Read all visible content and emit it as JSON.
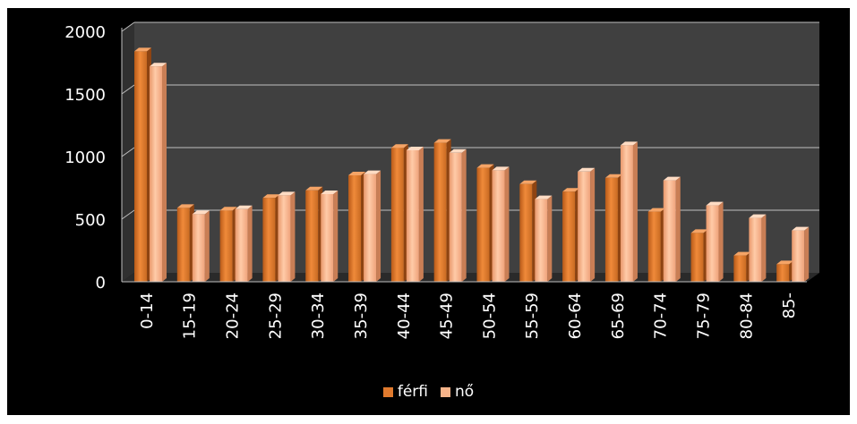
{
  "chart_data": {
    "type": "bar",
    "categories": [
      "0-14",
      "15-19",
      "20-24",
      "25-29",
      "30-34",
      "35-39",
      "40-44",
      "45-49",
      "50-54",
      "55-59",
      "60-64",
      "65-69",
      "70-74",
      "75-79",
      "80-84",
      "85-"
    ],
    "series": [
      {
        "name": "férfi",
        "values": [
          1840,
          590,
          570,
          670,
          730,
          850,
          1070,
          1110,
          910,
          780,
          720,
          830,
          560,
          390,
          210,
          140
        ],
        "color": "#E07A2E"
      },
      {
        "name": "nő",
        "values": [
          1720,
          540,
          580,
          690,
          700,
          860,
          1050,
          1030,
          890,
          660,
          880,
          1090,
          810,
          610,
          510,
          410
        ],
        "color": "#F7B48A"
      }
    ],
    "yticks": [
      "0",
      "500",
      "1000",
      "1500",
      "2000"
    ],
    "ylim": [
      0,
      2000
    ],
    "grid": true,
    "legend_position": "bottom",
    "background": "#000000",
    "plot_background": "#404040",
    "gridline_color": "#BFBFBF"
  }
}
